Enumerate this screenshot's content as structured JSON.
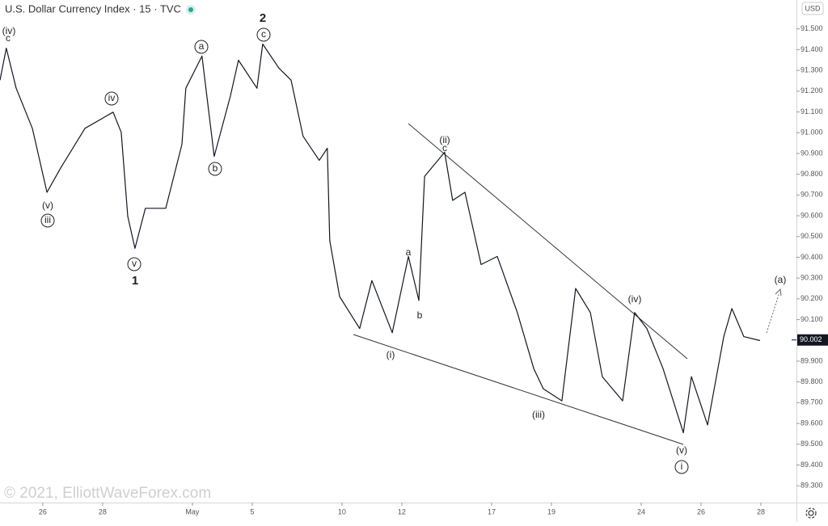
{
  "chart_data": {
    "type": "line",
    "title": "U.S. Dollar Currency Index · 15 · TVC",
    "currency": "USD",
    "current_price": 90.002,
    "watermark": "© 2021, ElliottWaveForex.com",
    "color": "#131722",
    "x": [
      -1.43,
      -1.22,
      -0.89,
      -0.35,
      0.14,
      0.59,
      1.41,
      2.35,
      2.62,
      2.84,
      3.08,
      3.43,
      4.11,
      4.65,
      4.78,
      5.32,
      5.73,
      6.27,
      6.54,
      7.16,
      7.35,
      7.89,
      8.3,
      8.7,
      9.24,
      9.51,
      9.59,
      9.92,
      10.59,
      11.0,
      11.68,
      12.22,
      12.57,
      12.76,
      13.43,
      13.7,
      14.11,
      14.65,
      15.19,
      15.86,
      16.41,
      16.73,
      17.35,
      17.81,
      18.3,
      18.7,
      19.38,
      19.78,
      20.19,
      20.73,
      21.41,
      21.68,
      22.22,
      22.76,
      23.03,
      23.43,
      23.97
    ],
    "values": [
      91.253,
      91.407,
      91.214,
      91.021,
      90.713,
      90.828,
      91.021,
      91.099,
      91.002,
      90.597,
      90.443,
      90.636,
      90.636,
      90.944,
      91.214,
      91.369,
      90.886,
      91.176,
      91.349,
      91.214,
      91.427,
      91.311,
      91.253,
      90.983,
      90.867,
      90.925,
      90.481,
      90.211,
      90.057,
      90.288,
      90.037,
      90.404,
      90.192,
      90.79,
      90.906,
      90.674,
      90.713,
      90.365,
      90.404,
      90.134,
      89.864,
      89.767,
      89.709,
      90.25,
      90.134,
      89.825,
      89.709,
      90.134,
      90.057,
      89.864,
      89.555,
      89.825,
      89.593,
      90.018,
      90.153,
      90.018,
      89.999
    ],
    "xlim": [
      -1.43,
      25.19
    ],
    "xticks": [
      {
        "value": 0,
        "label": "26"
      },
      {
        "value": 2,
        "label": "28"
      },
      {
        "value": 5,
        "label": "May"
      },
      {
        "value": 7,
        "label": "5"
      },
      {
        "value": 10,
        "label": "10"
      },
      {
        "value": 12,
        "label": "12"
      },
      {
        "value": 15,
        "label": "17"
      },
      {
        "value": 17,
        "label": "19"
      },
      {
        "value": 20,
        "label": "24"
      },
      {
        "value": 22,
        "label": "26"
      },
      {
        "value": 24,
        "label": "28"
      }
    ],
    "ylim": [
      89.219,
      91.639
    ],
    "yticks": [
      {
        "value": 89.3,
        "label": "89.300"
      },
      {
        "value": 89.4,
        "label": "89.400"
      },
      {
        "value": 89.5,
        "label": "89.500"
      },
      {
        "value": 89.6,
        "label": "89.600"
      },
      {
        "value": 89.7,
        "label": "89.700"
      },
      {
        "value": 89.8,
        "label": "89.800"
      },
      {
        "value": 89.9,
        "label": "89.900"
      },
      {
        "value": 90.1,
        "label": "90.100"
      },
      {
        "value": 90.2,
        "label": "90.200"
      },
      {
        "value": 90.3,
        "label": "90.300"
      },
      {
        "value": 90.4,
        "label": "90.400"
      },
      {
        "value": 90.5,
        "label": "90.500"
      },
      {
        "value": 90.6,
        "label": "90.600"
      },
      {
        "value": 90.7,
        "label": "90.700"
      },
      {
        "value": 90.8,
        "label": "90.800"
      },
      {
        "value": 90.9,
        "label": "90.900"
      },
      {
        "value": 91.0,
        "label": "91.000"
      },
      {
        "value": 91.1,
        "label": "91.100"
      },
      {
        "value": 91.2,
        "label": "91.200"
      },
      {
        "value": 91.3,
        "label": "91.300"
      },
      {
        "value": 91.4,
        "label": "91.400"
      },
      {
        "value": 91.5,
        "label": "91.500"
      }
    ],
    "annotations": [
      "(iv)",
      "c",
      "(v)",
      "iii",
      "iv",
      "v",
      "1",
      "a",
      "b",
      "2",
      "c",
      "a",
      "b",
      "(i)",
      "(ii)",
      "c",
      "(iii)",
      "(iv)",
      "(v)",
      "i",
      "(a)"
    ]
  }
}
